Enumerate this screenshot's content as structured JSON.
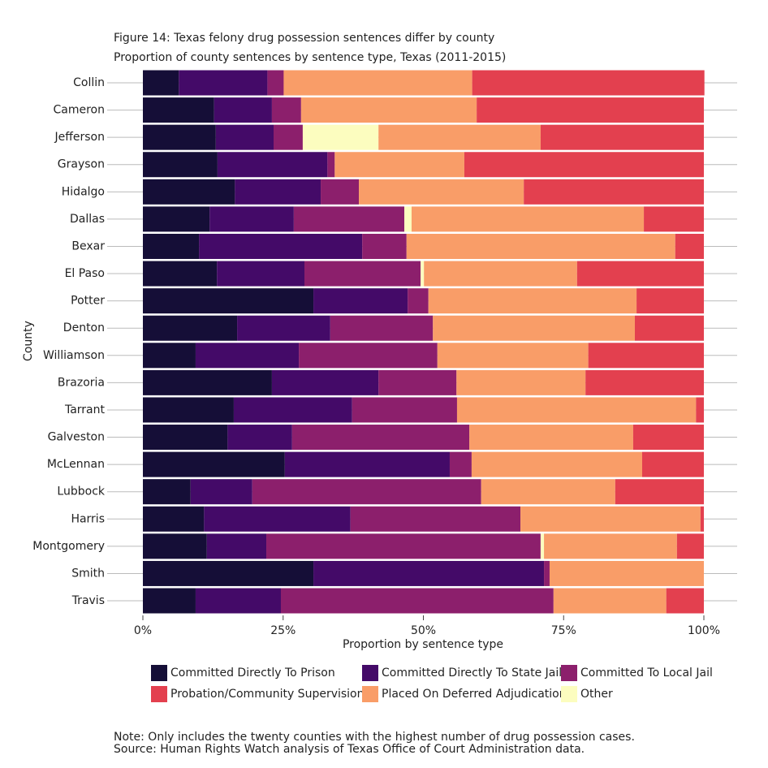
{
  "chart_data": {
    "type": "stacked-bar",
    "orientation": "horizontal",
    "title": "Figure 14: Texas felony drug possession sentences differ by county",
    "subtitle": "Proportion of county sentences by sentence type, Texas (2011-2015)",
    "x_label": "Proportion by sentence type",
    "y_label": "County",
    "categories": [
      "Collin",
      "Cameron",
      "Jefferson",
      "Grayson",
      "Hidalgo",
      "Dallas",
      "Bexar",
      "El Paso",
      "Potter",
      "Denton",
      "Williamson",
      "Brazoria",
      "Tarrant",
      "Galveston",
      "McLennan",
      "Lubbock",
      "Harris",
      "Montgomery",
      "Smith",
      "Travis"
    ],
    "xlim": [
      0,
      100
    ],
    "xticks": [
      {
        "value": 0,
        "label": "0%"
      },
      {
        "value": 25,
        "label": "25%"
      },
      {
        "value": 50,
        "label": "50%"
      },
      {
        "value": 75,
        "label": "75%"
      },
      {
        "value": 100,
        "label": "100%"
      }
    ],
    "series": [
      {
        "name": "Committed Directly To Prison",
        "color": "#150e37",
        "values": [
          6.4,
          12.7,
          13.0,
          13.3,
          16.4,
          11.9,
          10.0,
          13.2,
          30.4,
          16.8,
          9.4,
          23.0,
          16.2,
          15.1,
          25.3,
          8.5,
          10.9,
          11.4,
          30.4,
          9.4
        ]
      },
      {
        "name": "Committed Directly To State Jail",
        "color": "#440a68",
        "values": [
          15.8,
          10.3,
          10.3,
          19.6,
          15.3,
          15.0,
          29.1,
          15.6,
          16.8,
          16.6,
          18.4,
          19.0,
          21.1,
          11.5,
          29.4,
          11.0,
          26.1,
          10.6,
          41.1,
          15.2
        ]
      },
      {
        "name": "Committed To Local Jail",
        "color": "#8c1f6c",
        "values": [
          2.9,
          5.2,
          5.2,
          1.3,
          6.8,
          19.7,
          7.9,
          20.7,
          3.7,
          18.3,
          24.7,
          13.9,
          18.7,
          31.6,
          3.9,
          40.8,
          30.3,
          48.9,
          1.0,
          48.6
        ]
      },
      {
        "name": "Probation/Community Supervision",
        "color": "#e3404f",
        "values": [
          41.4,
          40.5,
          29.1,
          42.7,
          32.1,
          10.7,
          5.1,
          22.6,
          12.0,
          12.3,
          20.6,
          21.1,
          1.4,
          12.6,
          11.0,
          15.8,
          0.6,
          4.8,
          0,
          6.7
        ]
      },
      {
        "name": "Placed On Deferred Adjudication",
        "color": "#f99d68",
        "values": [
          33.6,
          31.3,
          28.9,
          23.1,
          29.4,
          41.4,
          47.9,
          27.3,
          37.1,
          36.0,
          26.9,
          23.0,
          42.6,
          29.2,
          30.4,
          23.9,
          32.1,
          23.7,
          27.5,
          20.1
        ]
      },
      {
        "name": "Other",
        "color": "#fcfdbf",
        "values": [
          0,
          0,
          13.5,
          0,
          0,
          1.3,
          0,
          0.6,
          0,
          0,
          0,
          0,
          0,
          0,
          0,
          0,
          0,
          0.6,
          0,
          0
        ]
      }
    ]
  },
  "notes": [
    "Note: Only includes the twenty counties with the highest number of drug possession cases.",
    "Source: Human Rights Watch analysis of Texas Office of Court Administration data."
  ]
}
